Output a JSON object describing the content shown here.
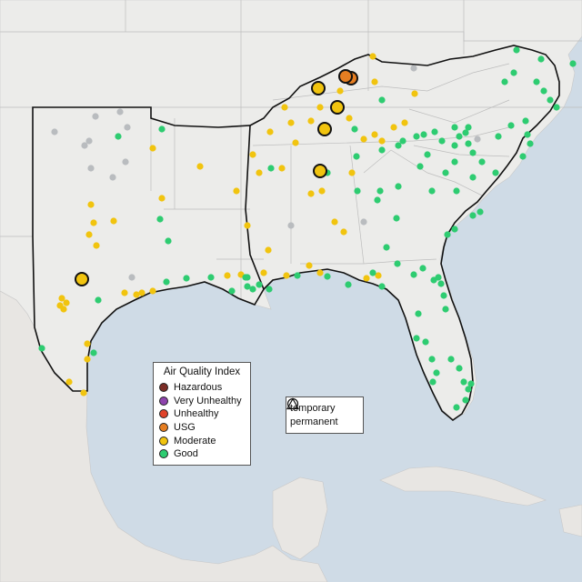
{
  "legend_aqi": {
    "title": "Air Quality Index",
    "levels": [
      {
        "label": "Hazardous",
        "color": "#7b2d26"
      },
      {
        "label": "Very Unhealthy",
        "color": "#8e44ad"
      },
      {
        "label": "Unhealthy",
        "color": "#e0442b"
      },
      {
        "label": "USG",
        "color": "#e67e22"
      },
      {
        "label": "Moderate",
        "color": "#f1c40f"
      },
      {
        "label": "Good",
        "color": "#2ecc71"
      }
    ]
  },
  "legend_type": {
    "items": [
      {
        "label": "temporary",
        "icon": "circle-icon"
      },
      {
        "label": "permanent",
        "icon": "triangle-icon"
      }
    ]
  },
  "colors": {
    "water": "#cfdbe6",
    "land": "#ececea",
    "nodata": "#b9bcbf"
  }
}
